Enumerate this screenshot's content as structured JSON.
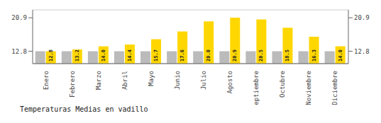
{
  "chart_data": {
    "type": "bar",
    "title": "Temperaturas Medias en vadillo",
    "categories": [
      "Enero",
      "Febrero",
      "Marzo",
      "Abril",
      "Mayo",
      "Junio",
      "Julio",
      "Agosto",
      "Septiembre",
      "Octubre",
      "Noviembre",
      "Diciembre"
    ],
    "series": [
      {
        "color": "#BBBBBB",
        "values": [
          12.8,
          12.8,
          12.8,
          12.8,
          12.8,
          12.8,
          12.8,
          12.8,
          12.8,
          12.8,
          12.8,
          12.8
        ]
      },
      {
        "color": "#FFD700",
        "values": [
          12.8,
          13.2,
          14.0,
          14.4,
          15.7,
          17.6,
          20.0,
          20.9,
          20.5,
          18.5,
          16.3,
          14.0
        ],
        "value_labels": [
          "12.8",
          "13.2",
          "14.0",
          "14.4",
          "15.7",
          "17.6",
          "20.0",
          "20.9",
          "20.5",
          "18.5",
          "16.3",
          "14.0"
        ],
        "data_labels": true
      }
    ],
    "ylim": [
      9.8,
      22.8
    ],
    "yticks": [
      12.8,
      20.9
    ],
    "grid": true
  }
}
